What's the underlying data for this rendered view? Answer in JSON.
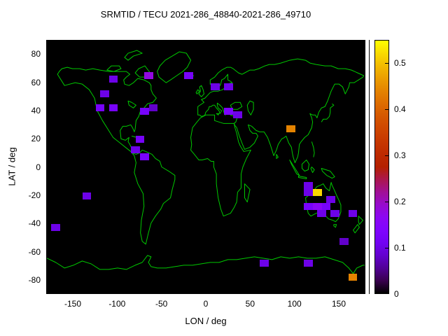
{
  "title": "SRMTID / TECU 2021-286_48840-2021-286_49710",
  "chart_data": {
    "type": "heatmap",
    "title": "SRMTID / TECU 2021-286_48840-2021-286_49710",
    "units": "TECU",
    "xlabel": "LON / deg",
    "ylabel": "LAT / deg",
    "x_range": [
      -180,
      180
    ],
    "y_range": [
      -90,
      90
    ],
    "x_ticks": [
      -150,
      -100,
      -50,
      0,
      50,
      100,
      150
    ],
    "y_ticks": [
      -80,
      -60,
      -40,
      -20,
      0,
      20,
      40,
      60,
      80
    ],
    "grid": false,
    "background_color": "#000000",
    "coastline_color": "#00c800",
    "colorbar": {
      "min": 0,
      "max": 0.55,
      "ticks": [
        0,
        0.1,
        0.2,
        0.3,
        0.4,
        0.5
      ],
      "palette": "gnuplot black-violet-magenta-orange-yellow",
      "position": "right"
    },
    "cell_size_deg": {
      "lon": 10,
      "lat": 5
    },
    "cells": [
      {
        "lon": -105,
        "lat": 62.5,
        "value": 0.1
      },
      {
        "lon": -65,
        "lat": 65,
        "value": 0.18
      },
      {
        "lon": -20,
        "lat": 65,
        "value": 0.12
      },
      {
        "lon": 10,
        "lat": 57.5,
        "value": 0.1
      },
      {
        "lon": 25,
        "lat": 57.5,
        "value": 0.1
      },
      {
        "lon": -115,
        "lat": 52.5,
        "value": 0.1
      },
      {
        "lon": -120,
        "lat": 42.5,
        "value": 0.12
      },
      {
        "lon": -105,
        "lat": 42.5,
        "value": 0.12
      },
      {
        "lon": -70,
        "lat": 40,
        "value": 0.12
      },
      {
        "lon": -60,
        "lat": 42.5,
        "value": 0.08
      },
      {
        "lon": 25,
        "lat": 40,
        "value": 0.13
      },
      {
        "lon": 35,
        "lat": 37.5,
        "value": 0.1
      },
      {
        "lon": 95,
        "lat": 27.5,
        "value": 0.44
      },
      {
        "lon": -75,
        "lat": 20,
        "value": 0.12
      },
      {
        "lon": -80,
        "lat": 12.5,
        "value": 0.1
      },
      {
        "lon": -70,
        "lat": 7.5,
        "value": 0.12
      },
      {
        "lon": -135,
        "lat": -20,
        "value": 0.1
      },
      {
        "lon": 115,
        "lat": -12.5,
        "value": 0.1
      },
      {
        "lon": 115,
        "lat": -17.5,
        "value": 0.1
      },
      {
        "lon": 125,
        "lat": -17.5,
        "value": 0.52
      },
      {
        "lon": 140,
        "lat": -22.5,
        "value": 0.1
      },
      {
        "lon": 115,
        "lat": -27.5,
        "value": 0.12
      },
      {
        "lon": 125,
        "lat": -27.5,
        "value": 0.16
      },
      {
        "lon": 135,
        "lat": -27.5,
        "value": 0.12
      },
      {
        "lon": 130,
        "lat": -32.5,
        "value": 0.1
      },
      {
        "lon": 145,
        "lat": -32.5,
        "value": 0.1
      },
      {
        "lon": 165,
        "lat": -32.5,
        "value": 0.1
      },
      {
        "lon": -170,
        "lat": -42.5,
        "value": 0.1
      },
      {
        "lon": 155,
        "lat": -52.5,
        "value": 0.08
      },
      {
        "lon": 65,
        "lat": -67.5,
        "value": 0.1
      },
      {
        "lon": 115,
        "lat": -67.5,
        "value": 0.1
      },
      {
        "lon": 165,
        "lat": -77.5,
        "value": 0.44
      }
    ]
  }
}
